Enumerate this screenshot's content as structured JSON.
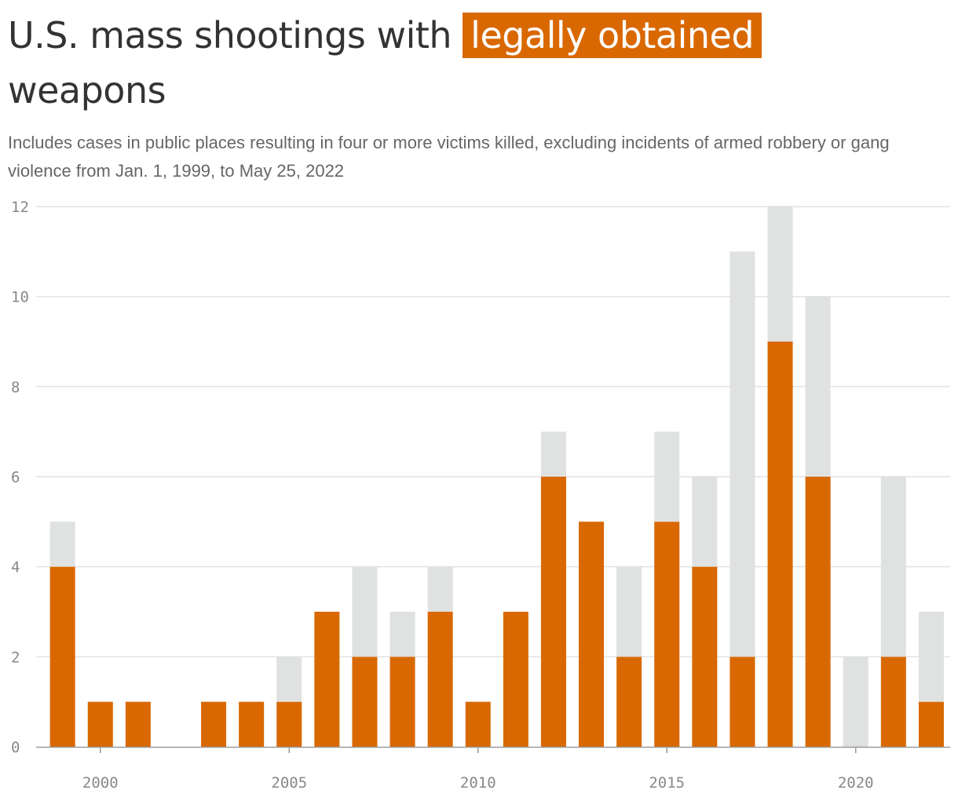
{
  "title": {
    "before": "U.S. mass shootings with",
    "highlight": "legally obtained",
    "after": "weapons"
  },
  "subtitle": "Includes cases in public places resulting in four or more victims killed, excluding incidents of armed robbery or gang violence from Jan. 1, 1999, to May 25, 2022",
  "colors": {
    "accent": "#d96800",
    "rest": "#e0e1e1",
    "grid": "#e2e2e2",
    "axis": "#999999"
  },
  "chart_data": {
    "type": "bar",
    "stacked": true,
    "x": [
      1999,
      2000,
      2001,
      2002,
      2003,
      2004,
      2005,
      2006,
      2007,
      2008,
      2009,
      2010,
      2011,
      2012,
      2013,
      2014,
      2015,
      2016,
      2017,
      2018,
      2019,
      2020,
      2021,
      2022
    ],
    "series": [
      {
        "name": "",
        "color": "#d96800",
        "values": [
          4,
          1,
          1,
          0,
          1,
          1,
          1,
          3,
          2,
          2,
          3,
          1,
          3,
          6,
          5,
          2,
          5,
          4,
          2,
          9,
          6,
          0,
          2,
          1
        ]
      },
      {
        "name": "",
        "color": "#e0e1e1",
        "values": [
          1,
          0,
          0,
          0,
          0,
          0,
          1,
          0,
          2,
          1,
          1,
          0,
          0,
          1,
          0,
          2,
          2,
          2,
          9,
          3,
          4,
          2,
          4,
          2
        ]
      }
    ],
    "y_ticks": [
      "0",
      "2",
      "4",
      "6",
      "8",
      "10",
      "12"
    ],
    "x_ticks": [
      "2000",
      "2005",
      "2010",
      "2015",
      "2020"
    ],
    "ylim": [
      0,
      12
    ],
    "xlim": [
      1998.3,
      2022.5
    ],
    "grid": true,
    "legend": "none",
    "xlabel": "",
    "ylabel": ""
  }
}
